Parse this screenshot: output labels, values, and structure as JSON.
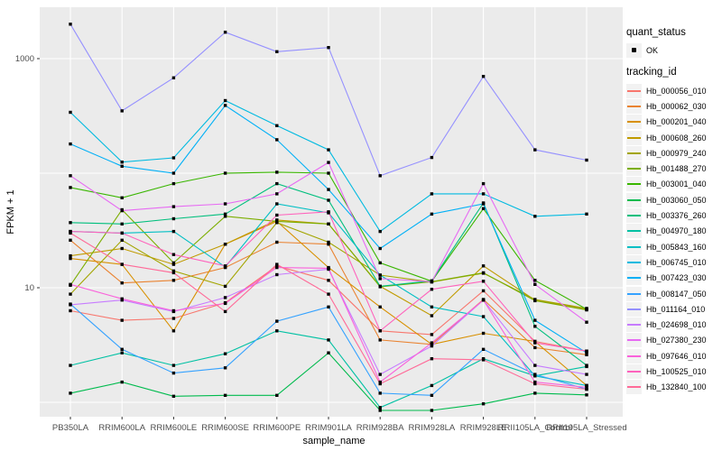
{
  "legend": {
    "quant_status_title": "quant_status",
    "ok_label": "OK",
    "tracking_id_title": "tracking_id"
  },
  "chart_data": {
    "type": "line",
    "title": "",
    "xlabel": "sample_name",
    "ylabel": "FPKM + 1",
    "y_scale": "log10",
    "ylim": [
      0.75,
      2800
    ],
    "y_tick_labels": [
      {
        "label": "1000",
        "value": 1000
      },
      {
        "label": "10",
        "value": 10
      }
    ],
    "y_gridline_values": [
      1000,
      100,
      10,
      1
    ],
    "grid": true,
    "legend_position": "right",
    "panel_background": "#EBEBEB",
    "gridline_color": "#FFFFFF",
    "tick_color": "#333333",
    "tick_label_color": "#4D4D4D",
    "marker": {
      "shape": "square",
      "color": "#000000",
      "status_label": "OK"
    },
    "categories": [
      "PB350LA",
      "RRIM600LA",
      "RRIM600LE",
      "RRIM600SE",
      "RRIM600PE",
      "RRIM901LA",
      "RRIM928BA",
      "RRIM928LA",
      "RRIM928LE",
      "RRII105LA_Control",
      "RRII105LA_Stressed"
    ],
    "series": [
      {
        "name": "Hb_000056_010",
        "color": "#F8766D",
        "values": [
          6.3,
          5.2,
          5.4,
          7.4,
          15.5,
          11.6,
          4.2,
          3.9,
          9.4,
          3.4,
          2.8
        ]
      },
      {
        "name": "Hb_000062_030",
        "color": "#EA8331",
        "values": [
          26,
          11,
          11.6,
          15,
          25,
          24,
          3.5,
          3.2,
          7.9,
          3.0,
          2.6
        ]
      },
      {
        "name": "Hb_000201_040",
        "color": "#D89000",
        "values": [
          18,
          16,
          4.2,
          24,
          38,
          15,
          6.8,
          3.2,
          4.0,
          3.4,
          1.4
        ]
      },
      {
        "name": "Hb_000608_260",
        "color": "#C09B00",
        "values": [
          19,
          22,
          16,
          24,
          39,
          36,
          10.3,
          5.7,
          15.5,
          7.8,
          6.5
        ]
      },
      {
        "name": "Hb_000979_240",
        "color": "#A3A500",
        "values": [
          8.8,
          26,
          14,
          10.3,
          37,
          25,
          12.9,
          11.2,
          13.4,
          7.9,
          6.6
        ]
      },
      {
        "name": "Hb_001488_270",
        "color": "#7CAE00",
        "values": [
          10.5,
          48,
          16.5,
          42,
          38,
          36,
          10.2,
          11.3,
          13.5,
          7.7,
          6.4
        ]
      },
      {
        "name": "Hb_003001_040",
        "color": "#39B600",
        "values": [
          75,
          61,
          81,
          100,
          102,
          100,
          16.5,
          11.4,
          49,
          11.6,
          6.5
        ]
      },
      {
        "name": "Hb_003060_050",
        "color": "#00BB4E",
        "values": [
          1.2,
          1.5,
          1.13,
          1.15,
          1.15,
          2.7,
          0.85,
          0.85,
          0.97,
          1.2,
          1.16
        ]
      },
      {
        "name": "Hb_003376_260",
        "color": "#00BF7D",
        "values": [
          37,
          36,
          40,
          44,
          81,
          58,
          10.3,
          11.5,
          55,
          4.6,
          2.1
        ]
      },
      {
        "name": "Hb_004970_180",
        "color": "#00C1A3",
        "values": [
          2.1,
          2.7,
          2.1,
          2.65,
          4.2,
          3.5,
          0.9,
          1.4,
          2.4,
          1.7,
          2.05
        ]
      },
      {
        "name": "Hb_005843_160",
        "color": "#00BFC4",
        "values": [
          31,
          30,
          31,
          15.2,
          54,
          45,
          12.9,
          6.8,
          5.6,
          1.7,
          1.4
        ]
      },
      {
        "name": "Hb_006745_010",
        "color": "#00BAE0",
        "values": [
          340,
          125,
          136,
          430,
          260,
          160,
          31,
          66,
          66,
          42,
          44
        ]
      },
      {
        "name": "Hb_007423_030",
        "color": "#00B0F6",
        "values": [
          180,
          115,
          100,
          390,
          196,
          72,
          22,
          44,
          54,
          5.2,
          2.7
        ]
      },
      {
        "name": "Hb_008147_050",
        "color": "#35A2FF",
        "values": [
          7.2,
          2.9,
          1.8,
          2.0,
          5.1,
          6.8,
          1.2,
          1.15,
          2.9,
          1.75,
          1.3
        ]
      },
      {
        "name": "Hb_011164_010",
        "color": "#9590FF",
        "values": [
          2000,
          350,
          680,
          1700,
          1150,
          1250,
          95,
          137,
          700,
          160,
          130
        ]
      },
      {
        "name": "Hb_024698_010",
        "color": "#C77CFF",
        "values": [
          7.1,
          7.8,
          6.2,
          8.2,
          13,
          14.5,
          1.75,
          3.1,
          7.8,
          2.1,
          1.75
        ]
      },
      {
        "name": "Hb_027380_230",
        "color": "#E76BF3",
        "values": [
          95,
          47,
          51,
          54,
          66,
          124,
          12,
          11.3,
          81,
          10.7,
          5.0
        ]
      },
      {
        "name": "Hb_097646_010",
        "color": "#FA62DB",
        "values": [
          10.7,
          8.0,
          6.3,
          7.3,
          15,
          14.8,
          1.5,
          3.3,
          7.8,
          1.5,
          1.35
        ]
      },
      {
        "name": "Hb_100525_010",
        "color": "#FF62BC",
        "values": [
          31,
          30,
          19.5,
          15.5,
          43,
          46,
          4.2,
          9.7,
          11.4,
          3.3,
          2.8
        ]
      },
      {
        "name": "Hb_132840_100",
        "color": "#FF6A98",
        "values": [
          30,
          16,
          13.5,
          6.2,
          16,
          8.8,
          1.45,
          2.4,
          2.35,
          1.45,
          1.3
        ]
      }
    ]
  }
}
